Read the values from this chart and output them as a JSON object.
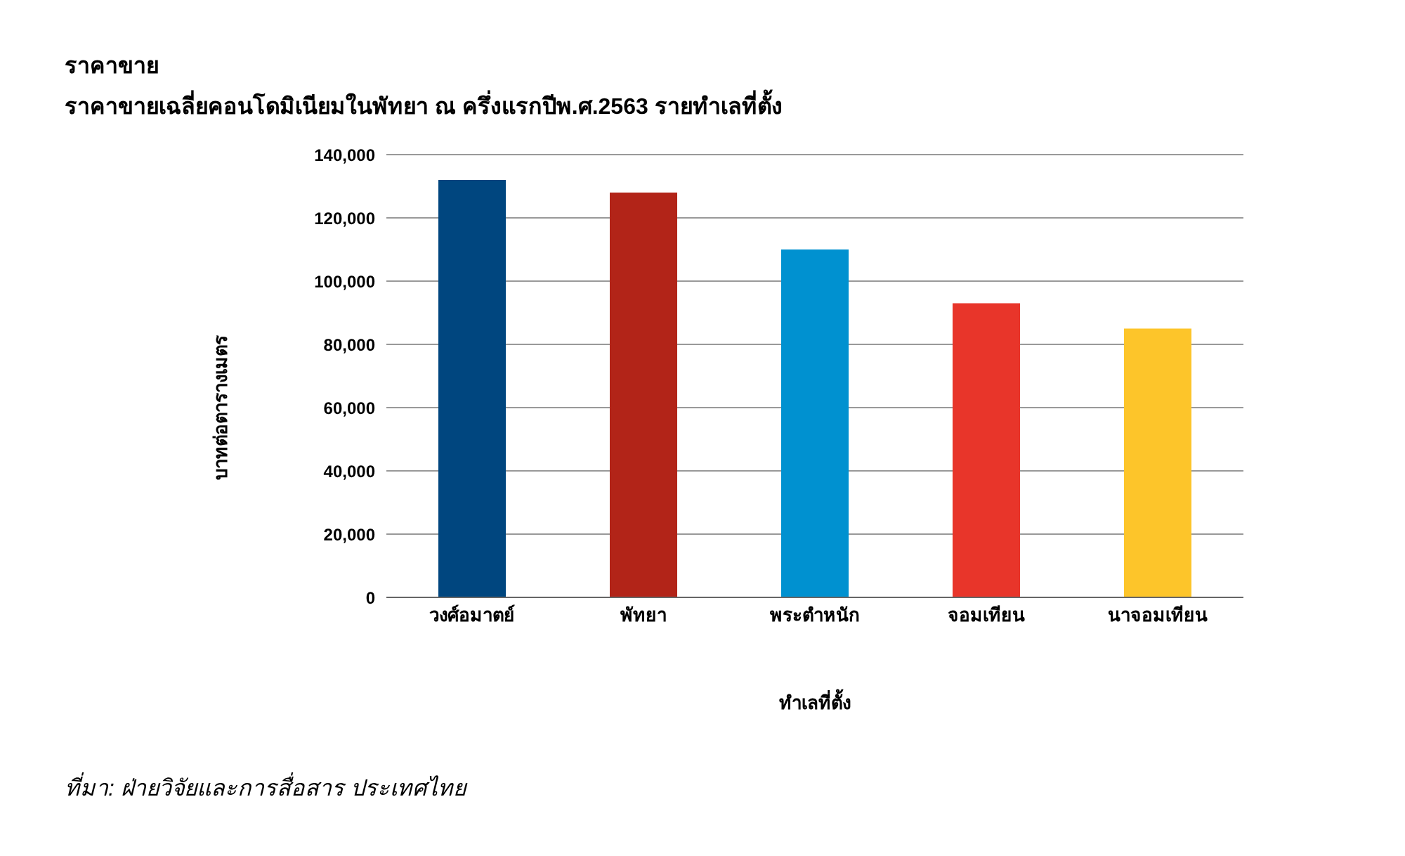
{
  "chart_data": {
    "type": "bar",
    "title": "ราคาขาย",
    "subtitle": "ราคาขายเฉลี่ยคอนโดมิเนียมในพัทยา ณ ครึ่งแรกปีพ.ศ.2563 รายทำเลที่ตั้ง",
    "xlabel": "ทำเลที่ตั้ง",
    "ylabel": "บาทต่อตารางเมตร",
    "categories": [
      "วงศ์อมาตย์",
      "พัทยา",
      "พระตำหนัก",
      "จอมเทียน",
      "นาจอมเทียน"
    ],
    "values": [
      132000,
      128000,
      110000,
      93000,
      85000
    ],
    "colors": [
      "#00467f",
      "#b22418",
      "#0091d0",
      "#e8352a",
      "#fdc52a"
    ],
    "ylim": [
      0,
      140000
    ],
    "yticks": [
      0,
      {
        "value": 20000,
        "label": "20,000"
      },
      {
        "value": 40000,
        "label": "40,000"
      },
      {
        "value": 60000,
        "label": "60,000"
      },
      {
        "value": 80000,
        "label": "80,000"
      },
      {
        "value": 100000,
        "label": "100,000"
      },
      {
        "value": 120000,
        "label": "120,000"
      },
      {
        "value": 140000,
        "label": "140,000"
      }
    ],
    "grid": "y",
    "annotations": [
      "ที่มา: ฝ่ายวิจัยและการสื่อสาร ประเทศไทย"
    ]
  }
}
